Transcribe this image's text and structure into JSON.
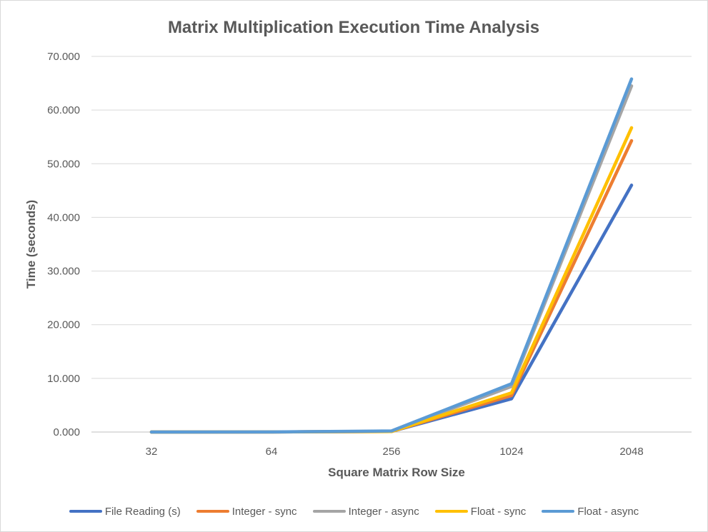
{
  "chart_data": {
    "type": "line",
    "title": "Matrix Multiplication Execution Time Analysis",
    "xlabel": "Square Matrix Row Size",
    "ylabel": "Time (seconds)",
    "categories": [
      "32",
      "64",
      "256",
      "1024",
      "2048"
    ],
    "ylim": [
      0,
      70
    ],
    "yticks": [
      "0.000",
      "10.000",
      "20.000",
      "30.000",
      "40.000",
      "50.000",
      "60.000",
      "70.000"
    ],
    "grid": true,
    "legend_position": "bottom",
    "series": [
      {
        "name": "File Reading (s)",
        "color": "#4472c4",
        "values": [
          0.0,
          0.01,
          0.1,
          6.2,
          46.0
        ]
      },
      {
        "name": "Integer - sync",
        "color": "#ed7d31",
        "values": [
          0.0,
          0.01,
          0.1,
          6.8,
          54.3
        ]
      },
      {
        "name": "Integer - async",
        "color": "#a5a5a5",
        "values": [
          0.0,
          0.01,
          0.15,
          8.5,
          64.5
        ]
      },
      {
        "name": "Float - sync",
        "color": "#ffc000",
        "values": [
          0.0,
          0.01,
          0.1,
          7.3,
          56.7
        ]
      },
      {
        "name": "Float - async",
        "color": "#5b9bd5",
        "values": [
          0.0,
          0.01,
          0.2,
          9.0,
          65.8
        ]
      }
    ]
  }
}
